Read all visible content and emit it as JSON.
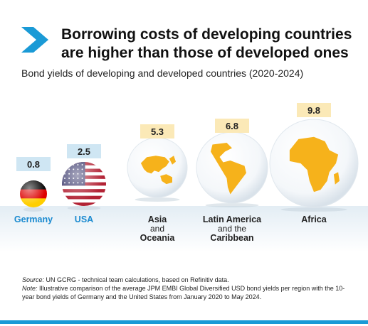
{
  "header": {
    "title": "Borrowing costs of developing countries are higher than those of developed ones",
    "subtitle": "Bond yields of developing and developed countries (2020-2024)"
  },
  "chart_data": {
    "type": "bar",
    "categories": [
      "Germany",
      "USA",
      "Asia and Oceania",
      "Latin America and the Caribbean",
      "Africa"
    ],
    "category_lines": [
      [
        "Germany"
      ],
      [
        "USA"
      ],
      [
        "Asia",
        "and",
        "Oceania"
      ],
      [
        "Latin America",
        "and the",
        "Caribbean"
      ],
      [
        "Africa"
      ]
    ],
    "values": [
      0.8,
      2.5,
      5.3,
      6.8,
      9.8
    ],
    "value_labels": [
      "0.8",
      "2.5",
      "5.3",
      "6.8",
      "9.8"
    ],
    "encoding": "circle size",
    "title": "Borrowing costs of developing countries are higher than those of developed ones",
    "subtitle": "Bond yields of developing and developed countries (2020-2024)"
  },
  "footer": {
    "source_label": "Source:",
    "source_text": "UN GCRG - technical team calculations, based on Refinitiv data.",
    "note_label": "Note:",
    "note_text": "Illustrative comparison of the average JPM EMBI Global Diversified USD bond yields per region with the 10-year bond yields of Germany and the United States from January 2020 to May 2024."
  },
  "colors": {
    "accent_blue": "#1a9ad6",
    "label_box": "#cfe6f3",
    "value_box_developing": "#fbe9b7",
    "continent_fill": "#f6b21b",
    "country_label": "#1a8ad0",
    "germany_flag": [
      "#000000",
      "#dd0000",
      "#ffce00"
    ],
    "usa_flag": [
      "#b22234",
      "#ffffff",
      "#3c3b6e"
    ]
  },
  "icons": {
    "header": "chevron-right-icon",
    "items": [
      "germany-flag-icon",
      "usa-flag-icon",
      "asia-oceania-globe-icon",
      "latin-america-globe-icon",
      "africa-globe-icon"
    ]
  }
}
